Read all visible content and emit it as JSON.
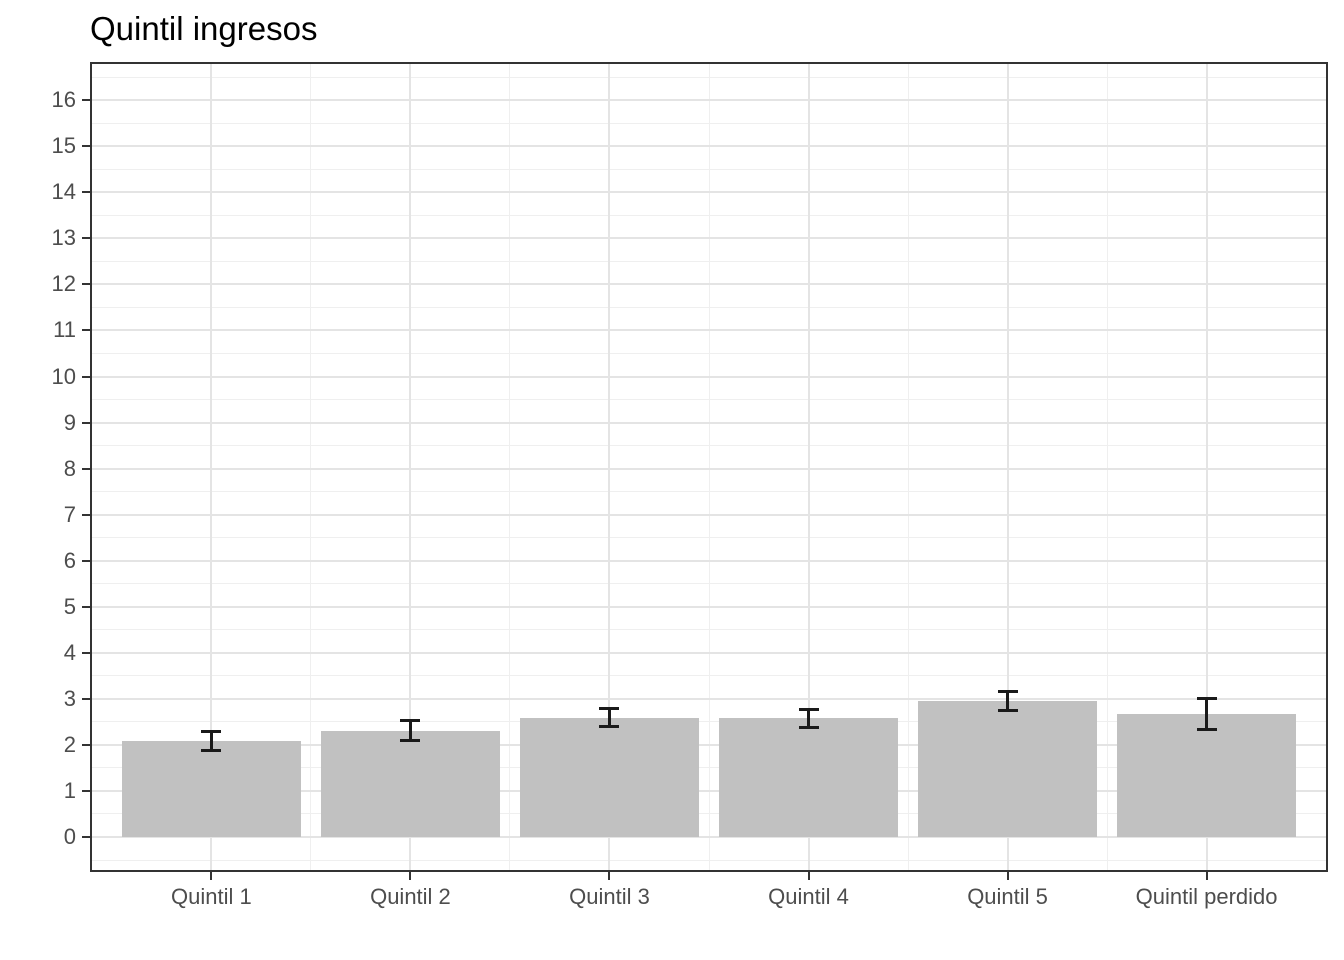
{
  "title": "Quintil ingresos",
  "chart_data": {
    "type": "bar",
    "title": "Quintil ingresos",
    "xlabel": "",
    "ylabel": "",
    "legend": "none",
    "grid": "major and minor, horizontal and vertical",
    "categories": [
      "Quintil 1",
      "Quintil 2",
      "Quintil 3",
      "Quintil 4",
      "Quintil 5",
      "Quintil perdido"
    ],
    "values": [
      2.09,
      2.3,
      2.58,
      2.58,
      2.95,
      2.67
    ],
    "error_low": [
      1.88,
      2.09,
      2.39,
      2.38,
      2.74,
      2.33
    ],
    "error_high": [
      2.3,
      2.52,
      2.78,
      2.77,
      3.15,
      3.0
    ],
    "ylim": [
      0,
      16
    ],
    "y_ticks": [
      0,
      1,
      2,
      3,
      4,
      5,
      6,
      7,
      8,
      9,
      10,
      11,
      12,
      13,
      14,
      15,
      16
    ],
    "colors": {
      "bar_fill": "#c1c1c1",
      "error_bar": "#1a1a1a",
      "panel_border": "#333333",
      "grid_major": "#e4e4e4",
      "grid_minor": "#efefef",
      "axis_text": "#4d4d4d",
      "title_text": "#000000",
      "background": "#ffffff"
    }
  }
}
